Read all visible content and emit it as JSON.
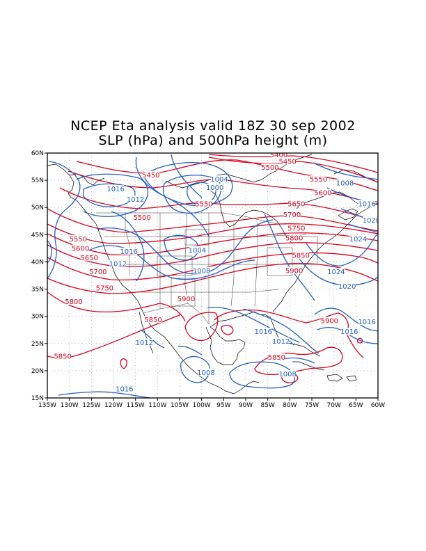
{
  "title": {
    "line1": "NCEP Eta analysis valid 18Z 30 sep 2002",
    "line2": "SLP (hPa) and 500hPa height (m)"
  },
  "map": {
    "lon_range": [
      -135,
      -60
    ],
    "lat_range": [
      15,
      60
    ],
    "x_ticks": [
      "135W",
      "130W",
      "125W",
      "120W",
      "115W",
      "110W",
      "105W",
      "100W",
      "95W",
      "90W",
      "85W",
      "80W",
      "75W",
      "70W",
      "65W",
      "60W"
    ],
    "y_ticks": [
      "15N",
      "20N",
      "25N",
      "30N",
      "35N",
      "40N",
      "45N",
      "50N",
      "55N",
      "60N"
    ],
    "grid": "dotted",
    "colors": {
      "height_contours": "#e0001b",
      "slp_contours": "#1f5fc8",
      "coastlines": "#000000"
    }
  },
  "height_labels": [
    {
      "text": "5400",
      "lon": -82.5,
      "lat": 59.5
    },
    {
      "text": "5450",
      "lon": -80.5,
      "lat": 58.3
    },
    {
      "text": "5450",
      "lon": -111.5,
      "lat": 55.8
    },
    {
      "text": "5500",
      "lon": -84.5,
      "lat": 57.2
    },
    {
      "text": "5550",
      "lon": -73.5,
      "lat": 55.0
    },
    {
      "text": "5550",
      "lon": -99.5,
      "lat": 50.5
    },
    {
      "text": "5500",
      "lon": -113.5,
      "lat": 48.0
    },
    {
      "text": "5600",
      "lon": -72.5,
      "lat": 52.5
    },
    {
      "text": "5650",
      "lon": -78.5,
      "lat": 50.5
    },
    {
      "text": "5700",
      "lon": -79.5,
      "lat": 48.5
    },
    {
      "text": "5750",
      "lon": -78.5,
      "lat": 46.0
    },
    {
      "text": "5800",
      "lon": -79.0,
      "lat": 44.2
    },
    {
      "text": "5850",
      "lon": -77.5,
      "lat": 41.0
    },
    {
      "text": "5900",
      "lon": -79.0,
      "lat": 38.2
    },
    {
      "text": "5550",
      "lon": -128.0,
      "lat": 44.0
    },
    {
      "text": "5600",
      "lon": -127.5,
      "lat": 42.3
    },
    {
      "text": "5650",
      "lon": -125.5,
      "lat": 40.6
    },
    {
      "text": "5700",
      "lon": -123.5,
      "lat": 38.0
    },
    {
      "text": "5750",
      "lon": -122.0,
      "lat": 35.0
    },
    {
      "text": "5800",
      "lon": -129.0,
      "lat": 32.5
    },
    {
      "text": "5850",
      "lon": -111.0,
      "lat": 29.2
    },
    {
      "text": "5900",
      "lon": -103.5,
      "lat": 33.0
    },
    {
      "text": "5850",
      "lon": -131.5,
      "lat": 22.5
    },
    {
      "text": "5850",
      "lon": -83.0,
      "lat": 22.3
    },
    {
      "text": "5900",
      "lon": -71.0,
      "lat": 29.0
    }
  ],
  "slp_labels": [
    {
      "text": "1016",
      "lon": -119.5,
      "lat": 53.2
    },
    {
      "text": "1012",
      "lon": -115.0,
      "lat": 51.3
    },
    {
      "text": "1004",
      "lon": -96.0,
      "lat": 55.0
    },
    {
      "text": "1000",
      "lon": -97.0,
      "lat": 53.5
    },
    {
      "text": "1008",
      "lon": -67.5,
      "lat": 54.3
    },
    {
      "text": "1016",
      "lon": -62.5,
      "lat": 50.5
    },
    {
      "text": "1020",
      "lon": -61.5,
      "lat": 47.5
    },
    {
      "text": "1024",
      "lon": -64.5,
      "lat": 44.0
    },
    {
      "text": "1024",
      "lon": -69.5,
      "lat": 38.0
    },
    {
      "text": "1020",
      "lon": -67.0,
      "lat": 35.3
    },
    {
      "text": "1016",
      "lon": -116.5,
      "lat": 41.7
    },
    {
      "text": "1012",
      "lon": -119.0,
      "lat": 39.5
    },
    {
      "text": "1004",
      "lon": -101.0,
      "lat": 42.0
    },
    {
      "text": "1008",
      "lon": -100.0,
      "lat": 38.2
    },
    {
      "text": "1016",
      "lon": -86.0,
      "lat": 27.0
    },
    {
      "text": "1012",
      "lon": -82.0,
      "lat": 25.2
    },
    {
      "text": "1016",
      "lon": -62.5,
      "lat": 28.8
    },
    {
      "text": "1016",
      "lon": -66.5,
      "lat": 27.0
    },
    {
      "text": "1012",
      "lon": -113.0,
      "lat": 25.0
    },
    {
      "text": "1008",
      "lon": -99.0,
      "lat": 19.5
    },
    {
      "text": "1008",
      "lon": -80.5,
      "lat": 19.2
    },
    {
      "text": "1016",
      "lon": -117.5,
      "lat": 16.5
    }
  ]
}
